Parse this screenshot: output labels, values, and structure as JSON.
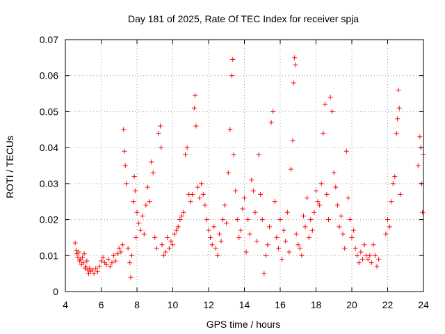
{
  "chart_data": {
    "type": "scatter",
    "title": "Day 181 of 2025, Rate Of TEC Index for receiver spja",
    "xlabel": "GPS time / hours",
    "ylabel": "ROTI / TECUs",
    "xlim": [
      4,
      24
    ],
    "ylim": [
      0,
      0.07
    ],
    "xticks": [
      "4",
      "6",
      "8",
      "10",
      "12",
      "14",
      "16",
      "18",
      "20",
      "22",
      "24"
    ],
    "yticks": [
      "0",
      "0.01",
      "0.02",
      "0.03",
      "0.04",
      "0.05",
      "0.06",
      "0.07"
    ],
    "grid": true,
    "marker": "+",
    "color": "#ff0000",
    "series": [
      {
        "name": "ROTI",
        "points": [
          [
            4.55,
            0.0135
          ],
          [
            4.6,
            0.0115
          ],
          [
            4.65,
            0.0105
          ],
          [
            4.7,
            0.0095
          ],
          [
            4.75,
            0.011
          ],
          [
            4.8,
            0.0085
          ],
          [
            4.85,
            0.009
          ],
          [
            4.9,
            0.0075
          ],
          [
            4.95,
            0.0095
          ],
          [
            5.0,
            0.008
          ],
          [
            5.05,
            0.0105
          ],
          [
            5.1,
            0.0065
          ],
          [
            5.15,
            0.007
          ],
          [
            5.2,
            0.0085
          ],
          [
            5.25,
            0.006
          ],
          [
            5.3,
            0.005
          ],
          [
            5.35,
            0.0065
          ],
          [
            5.4,
            0.0055
          ],
          [
            5.5,
            0.006
          ],
          [
            5.6,
            0.005
          ],
          [
            5.7,
            0.0065
          ],
          [
            5.8,
            0.0055
          ],
          [
            5.9,
            0.007
          ],
          [
            6.0,
            0.0085
          ],
          [
            6.1,
            0.0095
          ],
          [
            6.2,
            0.008
          ],
          [
            6.3,
            0.0075
          ],
          [
            6.4,
            0.009
          ],
          [
            6.5,
            0.007
          ],
          [
            6.6,
            0.008
          ],
          [
            6.7,
            0.01
          ],
          [
            6.8,
            0.0085
          ],
          [
            6.9,
            0.0105
          ],
          [
            7.0,
            0.012
          ],
          [
            7.1,
            0.011
          ],
          [
            7.2,
            0.013
          ],
          [
            7.25,
            0.045
          ],
          [
            7.3,
            0.039
          ],
          [
            7.35,
            0.035
          ],
          [
            7.4,
            0.03
          ],
          [
            7.5,
            0.012
          ],
          [
            7.6,
            0.008
          ],
          [
            7.65,
            0.004
          ],
          [
            7.7,
            0.01
          ],
          [
            7.8,
            0.025
          ],
          [
            7.85,
            0.032
          ],
          [
            7.9,
            0.028
          ],
          [
            7.95,
            0.015
          ],
          [
            8.0,
            0.022
          ],
          [
            8.1,
            0.019
          ],
          [
            8.2,
            0.017
          ],
          [
            8.3,
            0.021
          ],
          [
            8.4,
            0.016
          ],
          [
            8.5,
            0.024
          ],
          [
            8.6,
            0.029
          ],
          [
            8.7,
            0.025
          ],
          [
            8.8,
            0.036
          ],
          [
            8.9,
            0.033
          ],
          [
            9.0,
            0.015
          ],
          [
            9.1,
            0.012
          ],
          [
            9.2,
            0.044
          ],
          [
            9.3,
            0.046
          ],
          [
            9.35,
            0.04
          ],
          [
            9.4,
            0.013
          ],
          [
            9.5,
            0.01
          ],
          [
            9.6,
            0.011
          ],
          [
            9.7,
            0.015
          ],
          [
            9.8,
            0.012
          ],
          [
            9.9,
            0.014
          ],
          [
            10.0,
            0.013
          ],
          [
            10.1,
            0.016
          ],
          [
            10.2,
            0.017
          ],
          [
            10.3,
            0.018
          ],
          [
            10.4,
            0.02
          ],
          [
            10.5,
            0.021
          ],
          [
            10.6,
            0.022
          ],
          [
            10.7,
            0.038
          ],
          [
            10.8,
            0.04
          ],
          [
            10.9,
            0.027
          ],
          [
            11.0,
            0.025
          ],
          [
            11.1,
            0.027
          ],
          [
            11.2,
            0.051
          ],
          [
            11.25,
            0.0545
          ],
          [
            11.3,
            0.046
          ],
          [
            11.4,
            0.029
          ],
          [
            11.5,
            0.026
          ],
          [
            11.6,
            0.03
          ],
          [
            11.7,
            0.027
          ],
          [
            11.8,
            0.024
          ],
          [
            11.9,
            0.02
          ],
          [
            12.0,
            0.017
          ],
          [
            12.1,
            0.015
          ],
          [
            12.2,
            0.013
          ],
          [
            12.3,
            0.018
          ],
          [
            12.4,
            0.012
          ],
          [
            12.5,
            0.01
          ],
          [
            12.6,
            0.016
          ],
          [
            12.7,
            0.014
          ],
          [
            12.8,
            0.02
          ],
          [
            12.9,
            0.024
          ],
          [
            13.0,
            0.019
          ],
          [
            13.1,
            0.033
          ],
          [
            13.2,
            0.045
          ],
          [
            13.3,
            0.06
          ],
          [
            13.35,
            0.0645
          ],
          [
            13.4,
            0.038
          ],
          [
            13.5,
            0.028
          ],
          [
            13.6,
            0.02
          ],
          [
            13.7,
            0.015
          ],
          [
            13.8,
            0.017
          ],
          [
            13.9,
            0.023
          ],
          [
            14.0,
            0.026
          ],
          [
            14.1,
            0.011
          ],
          [
            14.2,
            0.02
          ],
          [
            14.3,
            0.016
          ],
          [
            14.4,
            0.031
          ],
          [
            14.5,
            0.028
          ],
          [
            14.6,
            0.022
          ],
          [
            14.7,
            0.014
          ],
          [
            14.8,
            0.038
          ],
          [
            14.9,
            0.027
          ],
          [
            15.0,
            0.02
          ],
          [
            15.1,
            0.005
          ],
          [
            15.2,
            0.01
          ],
          [
            15.3,
            0.013
          ],
          [
            15.4,
            0.018
          ],
          [
            15.5,
            0.047
          ],
          [
            15.6,
            0.05
          ],
          [
            15.7,
            0.025
          ],
          [
            15.8,
            0.015
          ],
          [
            15.9,
            0.012
          ],
          [
            16.0,
            0.02
          ],
          [
            16.1,
            0.009
          ],
          [
            16.2,
            0.017
          ],
          [
            16.3,
            0.014
          ],
          [
            16.4,
            0.022
          ],
          [
            16.5,
            0.011
          ],
          [
            16.6,
            0.034
          ],
          [
            16.7,
            0.042
          ],
          [
            16.75,
            0.058
          ],
          [
            16.8,
            0.065
          ],
          [
            16.85,
            0.063
          ],
          [
            16.9,
            0.016
          ],
          [
            17.0,
            0.013
          ],
          [
            17.1,
            0.012
          ],
          [
            17.2,
            0.01
          ],
          [
            17.3,
            0.021
          ],
          [
            17.4,
            0.018
          ],
          [
            17.5,
            0.026
          ],
          [
            17.6,
            0.015
          ],
          [
            17.7,
            0.02
          ],
          [
            17.8,
            0.017
          ],
          [
            17.9,
            0.022
          ],
          [
            18.0,
            0.028
          ],
          [
            18.1,
            0.025
          ],
          [
            18.2,
            0.024
          ],
          [
            18.3,
            0.03
          ],
          [
            18.4,
            0.044
          ],
          [
            18.5,
            0.052
          ],
          [
            18.6,
            0.027
          ],
          [
            18.7,
            0.02
          ],
          [
            18.8,
            0.054
          ],
          [
            18.9,
            0.05
          ],
          [
            19.0,
            0.033
          ],
          [
            19.1,
            0.029
          ],
          [
            19.2,
            0.024
          ],
          [
            19.3,
            0.018
          ],
          [
            19.4,
            0.021
          ],
          [
            19.5,
            0.016
          ],
          [
            19.6,
            0.012
          ],
          [
            19.7,
            0.039
          ],
          [
            19.8,
            0.026
          ],
          [
            19.9,
            0.02
          ],
          [
            20.0,
            0.015
          ],
          [
            20.1,
            0.017
          ],
          [
            20.2,
            0.012
          ],
          [
            20.3,
            0.01
          ],
          [
            20.4,
            0.008
          ],
          [
            20.5,
            0.011
          ],
          [
            20.6,
            0.009
          ],
          [
            20.7,
            0.013
          ],
          [
            20.8,
            0.01
          ],
          [
            20.9,
            0.009
          ],
          [
            21.0,
            0.01
          ],
          [
            21.1,
            0.008
          ],
          [
            21.2,
            0.013
          ],
          [
            21.3,
            0.01
          ],
          [
            21.4,
            0.007
          ],
          [
            21.5,
            0.009
          ],
          [
            21.9,
            0.016
          ],
          [
            22.0,
            0.02
          ],
          [
            22.1,
            0.018
          ],
          [
            22.2,
            0.025
          ],
          [
            22.3,
            0.03
          ],
          [
            22.4,
            0.032
          ],
          [
            22.5,
            0.044
          ],
          [
            22.55,
            0.048
          ],
          [
            22.6,
            0.056
          ],
          [
            22.65,
            0.051
          ],
          [
            22.7,
            0.027
          ],
          [
            23.7,
            0.035
          ],
          [
            23.8,
            0.043
          ],
          [
            23.85,
            0.04
          ],
          [
            23.9,
            0.03
          ],
          [
            23.95,
            0.022
          ],
          [
            24.0,
            0.038
          ]
        ]
      }
    ]
  }
}
